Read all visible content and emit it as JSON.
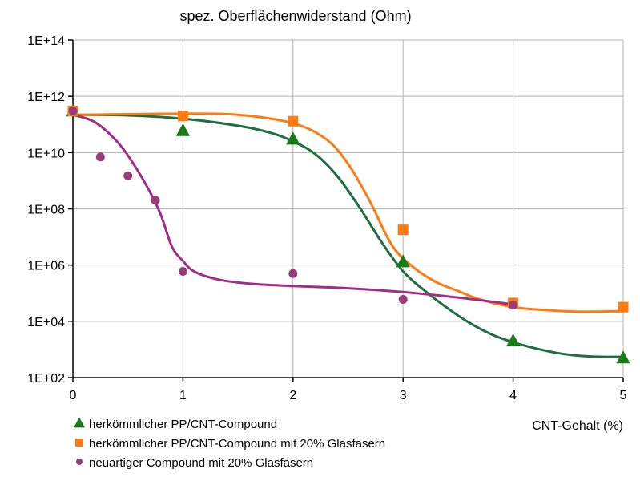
{
  "chart_data": {
    "type": "scatter",
    "title": "spez. Oberflächenwiderstand (Ohm)",
    "xlabel": "CNT-Gehalt (%)",
    "ylabel": "",
    "xlim": [
      0,
      5
    ],
    "ylim": [
      100.0,
      100000000000000.0
    ],
    "y_scale": "log",
    "grid": true,
    "legend_position": "bottom-left",
    "x_tick_labels": [
      "0",
      "1",
      "2",
      "3",
      "4",
      "5"
    ],
    "y_tick_labels": [
      "1E+02",
      "1E+04",
      "1E+06",
      "1E+08",
      "1E+10",
      "1E+12",
      "1E+14"
    ],
    "series": [
      {
        "name": "herkömmlicher PP/CNT-Compound",
        "marker": "triangle",
        "color": "#1a7a1a",
        "line_color": "#1f6e3f",
        "x": [
          0,
          1,
          2,
          3,
          4,
          5
        ],
        "y": [
          300000000000.0,
          60000000000.0,
          30000000000.0,
          1300000.0,
          2000.0,
          500.0
        ],
        "fit_x": [
          0,
          0.5,
          1,
          1.5,
          1.8,
          2,
          2.2,
          2.4,
          2.6,
          2.8,
          3,
          3.2,
          3.4,
          3.6,
          3.8,
          4,
          4.2,
          4.4,
          4.6,
          4.8,
          5
        ],
        "fit_y": [
          220000000000.0,
          210000000000.0,
          160000000000.0,
          90000000000.0,
          50000000000.0,
          25000000000.0,
          9000000000.0,
          1500000000.0,
          120000000.0,
          7000000.0,
          600000.0,
          120000.0,
          30000.0,
          9000.0,
          3500.0,
          1800.0,
          1100.0,
          750.0,
          600.0,
          550.0,
          550.0
        ]
      },
      {
        "name": "herkömmlicher PP/CNT-Compound mit 20% Glasfasern",
        "marker": "square",
        "color": "#ff7a10",
        "line_color": "#ff7a10",
        "x": [
          0,
          1,
          2,
          3,
          4,
          5
        ],
        "y": [
          300000000000.0,
          200000000000.0,
          130000000000.0,
          18000000.0,
          45000.0,
          32000.0
        ],
        "fit_x": [
          0,
          0.5,
          1,
          1.5,
          2,
          2.3,
          2.5,
          2.7,
          2.9,
          3.1,
          3.3,
          3.5,
          3.7,
          4,
          4.3,
          4.6,
          5
        ],
        "fit_y": [
          220000000000.0,
          230000000000.0,
          240000000000.0,
          220000000000.0,
          110000000000.0,
          30000000000.0,
          4000000000.0,
          180000000.0,
          5000000.0,
          800000.0,
          250000.0,
          120000.0,
          60000.0,
          32000.0,
          25000.0,
          22000.0,
          23000.0
        ]
      },
      {
        "name": "neuartiger Compound mit 20% Glasfasern",
        "marker": "circle",
        "color": "#983c7a",
        "line_color": "#a02d8a",
        "x": [
          0,
          0.25,
          0.5,
          0.75,
          1,
          2,
          3,
          4
        ],
        "y": [
          300000000000.0,
          7000000000.0,
          1500000000.0,
          200000000.0,
          600000.0,
          500000.0,
          60000.0,
          38000.0
        ],
        "fit_x": [
          0,
          0.2,
          0.4,
          0.55,
          0.7,
          0.8,
          0.9,
          1,
          1.1,
          1.3,
          1.6,
          2,
          2.5,
          3,
          3.5,
          4
        ],
        "fit_y": [
          220000000000.0,
          120000000000.0,
          25000000000.0,
          4000000000.0,
          400000000.0,
          60000000.0,
          4500000.0,
          1400000.0,
          600000.0,
          320000.0,
          220000.0,
          180000.0,
          150000.0,
          110000.0,
          70000.0,
          40000.0
        ]
      }
    ]
  }
}
